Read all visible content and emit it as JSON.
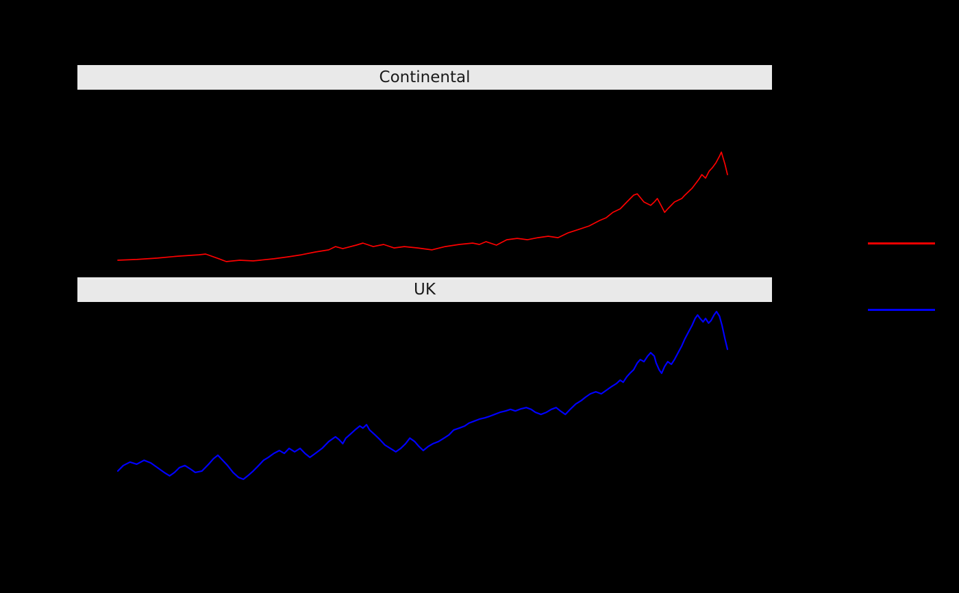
{
  "colors": {
    "background": "#000000",
    "strip_background": "#E9E9E9",
    "strip_text": "#1A1A1A",
    "continental_line": "#FF0000",
    "uk_line": "#0000FF"
  },
  "facets": [
    {
      "label": "Continental"
    },
    {
      "label": "UK"
    }
  ],
  "legend": {
    "items": [
      {
        "name": "continental-key",
        "color": "#FF0000"
      },
      {
        "name": "uk-key",
        "color": "#0000FF"
      }
    ]
  },
  "chart_data": [
    {
      "type": "line",
      "facet": "Continental",
      "color": "#FF0000",
      "x_unit": "percent-of-x-range",
      "y_unit": "percent-of-panel-height",
      "xlim": [
        0,
        100
      ],
      "ylim": [
        0,
        100
      ],
      "grid": false,
      "axis_tick_labels_visible": false,
      "points": [
        [
          0,
          5.9
        ],
        [
          3.1,
          6.3
        ],
        [
          6.5,
          7.1
        ],
        [
          9.9,
          8.2
        ],
        [
          13.3,
          9.0
        ],
        [
          14.4,
          9.4
        ],
        [
          16.6,
          6.7
        ],
        [
          17.8,
          5.1
        ],
        [
          20,
          5.9
        ],
        [
          22.2,
          5.5
        ],
        [
          25.6,
          6.7
        ],
        [
          27.9,
          7.8
        ],
        [
          30.1,
          9
        ],
        [
          32.4,
          10.6
        ],
        [
          34.6,
          11.8
        ],
        [
          35.7,
          13.7
        ],
        [
          36.9,
          12.5
        ],
        [
          39.1,
          14.5
        ],
        [
          40.2,
          15.7
        ],
        [
          41.9,
          13.7
        ],
        [
          43.6,
          14.9
        ],
        [
          45.3,
          12.9
        ],
        [
          47,
          13.7
        ],
        [
          49.2,
          12.9
        ],
        [
          51.5,
          11.8
        ],
        [
          53.7,
          13.7
        ],
        [
          56,
          14.9
        ],
        [
          58.2,
          15.7
        ],
        [
          59.3,
          14.9
        ],
        [
          60.4,
          16.5
        ],
        [
          62.1,
          14.5
        ],
        [
          63.8,
          17.6
        ],
        [
          65.5,
          18.4
        ],
        [
          67.2,
          17.6
        ],
        [
          68.9,
          18.8
        ],
        [
          70.6,
          19.6
        ],
        [
          72.2,
          18.8
        ],
        [
          73.9,
          21.6
        ],
        [
          75.6,
          23.5
        ],
        [
          77.3,
          25.5
        ],
        [
          79,
          28.6
        ],
        [
          80.1,
          30.2
        ],
        [
          81.2,
          33.3
        ],
        [
          82.4,
          35.3
        ],
        [
          83.5,
          39.2
        ],
        [
          84.6,
          43.1
        ],
        [
          85.2,
          43.9
        ],
        [
          86.3,
          39.2
        ],
        [
          87.4,
          37.3
        ],
        [
          88,
          39.2
        ],
        [
          88.5,
          41.2
        ],
        [
          89.1,
          37.3
        ],
        [
          89.7,
          33.3
        ],
        [
          90.2,
          35.3
        ],
        [
          91.3,
          39.2
        ],
        [
          92.5,
          41.2
        ],
        [
          93,
          43.1
        ],
        [
          94.2,
          47.1
        ],
        [
          95.3,
          52.2
        ],
        [
          95.8,
          54.9
        ],
        [
          96.4,
          52.9
        ],
        [
          97,
          56.9
        ],
        [
          97.5,
          58.8
        ],
        [
          98.1,
          61.6
        ],
        [
          98.7,
          65.5
        ],
        [
          99,
          67.8
        ],
        [
          99.6,
          60.8
        ],
        [
          100,
          54.9
        ]
      ]
    },
    {
      "type": "line",
      "facet": "UK",
      "color": "#0000FF",
      "x_unit": "percent-of-x-range",
      "y_unit": "percent-of-panel-height",
      "xlim": [
        0,
        100
      ],
      "ylim": [
        0,
        100
      ],
      "grid": false,
      "axis_tick_labels_visible": false,
      "points": [
        [
          0,
          36.9
        ],
        [
          0.9,
          39.0
        ],
        [
          2.0,
          40.3
        ],
        [
          3.1,
          39.5
        ],
        [
          4.3,
          41.0
        ],
        [
          5.4,
          40.0
        ],
        [
          6.5,
          38.2
        ],
        [
          7.6,
          36.4
        ],
        [
          8.5,
          35.1
        ],
        [
          9.3,
          36.4
        ],
        [
          10.1,
          38.2
        ],
        [
          11.0,
          39.0
        ],
        [
          11.9,
          37.7
        ],
        [
          12.7,
          36.4
        ],
        [
          13.8,
          36.9
        ],
        [
          14.9,
          39.5
        ],
        [
          15.7,
          41.6
        ],
        [
          16.4,
          42.9
        ],
        [
          17.2,
          41.0
        ],
        [
          18.0,
          39.0
        ],
        [
          18.9,
          36.4
        ],
        [
          19.8,
          34.5
        ],
        [
          20.6,
          33.8
        ],
        [
          21.3,
          35.1
        ],
        [
          22.2,
          36.9
        ],
        [
          23.1,
          39.0
        ],
        [
          23.9,
          41.0
        ],
        [
          24.7,
          42.1
        ],
        [
          25.6,
          43.6
        ],
        [
          26.5,
          44.7
        ],
        [
          27.3,
          43.6
        ],
        [
          28.1,
          45.5
        ],
        [
          29.0,
          44.2
        ],
        [
          29.9,
          45.5
        ],
        [
          30.7,
          43.6
        ],
        [
          31.5,
          42.1
        ],
        [
          32.4,
          43.6
        ],
        [
          33.5,
          45.5
        ],
        [
          34.6,
          48.1
        ],
        [
          35.7,
          49.9
        ],
        [
          36.3,
          48.8
        ],
        [
          36.9,
          47.3
        ],
        [
          37.4,
          49.4
        ],
        [
          38.0,
          50.6
        ],
        [
          38.9,
          52.5
        ],
        [
          39.7,
          54.0
        ],
        [
          40.2,
          53.2
        ],
        [
          40.8,
          54.5
        ],
        [
          41.3,
          52.5
        ],
        [
          42.2,
          50.6
        ],
        [
          43.0,
          48.8
        ],
        [
          43.8,
          46.8
        ],
        [
          44.7,
          45.5
        ],
        [
          45.6,
          44.2
        ],
        [
          46.4,
          45.5
        ],
        [
          47.2,
          47.3
        ],
        [
          47.9,
          49.4
        ],
        [
          48.7,
          48.1
        ],
        [
          49.4,
          46.2
        ],
        [
          50.1,
          44.7
        ],
        [
          50.9,
          46.2
        ],
        [
          51.7,
          47.3
        ],
        [
          52.6,
          48.1
        ],
        [
          53.5,
          49.4
        ],
        [
          54.3,
          50.6
        ],
        [
          55.1,
          52.5
        ],
        [
          56.0,
          53.2
        ],
        [
          56.9,
          54.0
        ],
        [
          57.6,
          55.1
        ],
        [
          58.4,
          55.8
        ],
        [
          59.3,
          56.6
        ],
        [
          60.2,
          57.1
        ],
        [
          61.0,
          57.7
        ],
        [
          61.8,
          58.4
        ],
        [
          62.7,
          59.2
        ],
        [
          63.6,
          59.7
        ],
        [
          64.4,
          60.3
        ],
        [
          65.2,
          59.7
        ],
        [
          66.1,
          60.5
        ],
        [
          67.0,
          61.0
        ],
        [
          67.8,
          60.3
        ],
        [
          68.5,
          59.2
        ],
        [
          69.4,
          58.4
        ],
        [
          70.3,
          59.2
        ],
        [
          71.1,
          60.3
        ],
        [
          71.9,
          61.0
        ],
        [
          72.6,
          59.7
        ],
        [
          73.4,
          58.4
        ],
        [
          74.2,
          60.3
        ],
        [
          75.1,
          62.3
        ],
        [
          76.0,
          63.6
        ],
        [
          76.7,
          64.9
        ],
        [
          77.5,
          66.2
        ],
        [
          78.4,
          67.0
        ],
        [
          79.3,
          66.2
        ],
        [
          80.1,
          67.5
        ],
        [
          80.9,
          68.8
        ],
        [
          81.8,
          70.1
        ],
        [
          82.4,
          71.4
        ],
        [
          82.9,
          70.6
        ],
        [
          83.5,
          72.7
        ],
        [
          84.0,
          74.0
        ],
        [
          84.6,
          75.3
        ],
        [
          85.2,
          77.9
        ],
        [
          85.7,
          79.2
        ],
        [
          86.3,
          78.4
        ],
        [
          86.9,
          80.5
        ],
        [
          87.4,
          81.8
        ],
        [
          88.0,
          80.5
        ],
        [
          88.3,
          77.9
        ],
        [
          88.8,
          75.3
        ],
        [
          89.2,
          74.0
        ],
        [
          89.7,
          76.6
        ],
        [
          90.2,
          78.4
        ],
        [
          90.8,
          77.4
        ],
        [
          91.3,
          79.2
        ],
        [
          91.9,
          81.8
        ],
        [
          92.5,
          84.4
        ],
        [
          93.0,
          87.0
        ],
        [
          93.6,
          89.6
        ],
        [
          94.2,
          92.2
        ],
        [
          94.7,
          94.8
        ],
        [
          95.1,
          96.1
        ],
        [
          95.5,
          94.8
        ],
        [
          96.0,
          93.5
        ],
        [
          96.4,
          94.8
        ],
        [
          96.9,
          93.0
        ],
        [
          97.3,
          94.0
        ],
        [
          97.8,
          96.1
        ],
        [
          98.2,
          97.4
        ],
        [
          98.7,
          95.6
        ],
        [
          99.1,
          92.2
        ],
        [
          99.6,
          87.0
        ],
        [
          100,
          83.1
        ]
      ]
    }
  ]
}
